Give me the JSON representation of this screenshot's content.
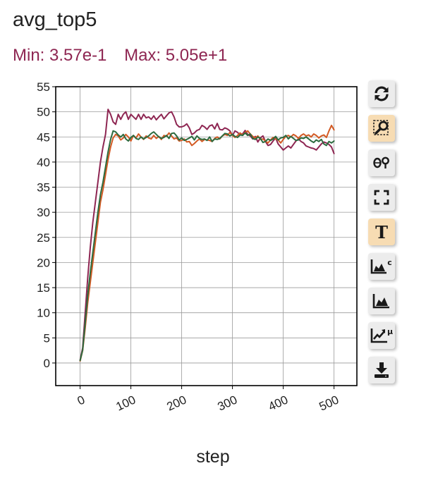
{
  "title": "avg_top5",
  "stats": {
    "min_label": "Min: 3.57e-1",
    "max_label": "Max: 5.05e+1"
  },
  "colors": {
    "stats": "#8e2652"
  },
  "toolbar": [
    {
      "name": "reset-button",
      "icon": "sync-icon",
      "active": false
    },
    {
      "name": "zoom-button",
      "icon": "zoom-rect-icon",
      "active": true
    },
    {
      "name": "zoom-out-button",
      "icon": "zoom-out-icon",
      "active": false
    },
    {
      "name": "fullscreen-button",
      "icon": "fullscreen-icon",
      "active": false
    },
    {
      "name": "text-button",
      "icon": "text-icon",
      "active": true
    },
    {
      "name": "chart-c-button",
      "icon": "area-chart-c-icon",
      "active": false
    },
    {
      "name": "chart-button",
      "icon": "area-chart-icon",
      "active": false
    },
    {
      "name": "chart-mu-button",
      "icon": "trend-mu-icon",
      "active": false
    },
    {
      "name": "download-button",
      "icon": "download-icon",
      "active": false
    }
  ],
  "chart_data": {
    "type": "line",
    "xlabel": "step",
    "ylabel": "",
    "xlim": [
      -48,
      545
    ],
    "ylim": [
      -4.5,
      55
    ],
    "xticks": [
      0,
      100,
      200,
      300,
      400,
      500
    ],
    "yticks": [
      0,
      5,
      10,
      15,
      20,
      25,
      30,
      35,
      40,
      45,
      50,
      55
    ],
    "grid": true,
    "series": [
      {
        "color": "#8e2652",
        "x": [
          0,
          5,
          10,
          15,
          20,
          25,
          30,
          35,
          40,
          45,
          50,
          55,
          60,
          65,
          70,
          75,
          80,
          85,
          90,
          95,
          100,
          105,
          110,
          115,
          120,
          125,
          130,
          135,
          140,
          145,
          150,
          155,
          160,
          165,
          170,
          175,
          180,
          185,
          190,
          195,
          200,
          205,
          210,
          215,
          220,
          225,
          230,
          235,
          240,
          245,
          250,
          255,
          260,
          265,
          270,
          275,
          280,
          285,
          290,
          295,
          300,
          305,
          310,
          315,
          320,
          325,
          330,
          335,
          340,
          345,
          350,
          355,
          360,
          365,
          370,
          375,
          380,
          385,
          390,
          395,
          400,
          405,
          410,
          415,
          420,
          425,
          430,
          435,
          440,
          445,
          450,
          455,
          460,
          465,
          470,
          475,
          480,
          485,
          490,
          495,
          500
        ],
        "y": [
          0.6,
          3,
          10,
          17,
          23,
          28,
          32,
          36,
          40,
          43,
          45.5,
          50.5,
          49.5,
          48,
          47.5,
          49.5,
          48.5,
          49.5,
          50,
          48.5,
          49.5,
          49,
          48.5,
          49.5,
          48.5,
          49.5,
          48.8,
          49,
          48.5,
          49.2,
          48.4,
          49,
          49.5,
          48.6,
          49.2,
          49.8,
          50,
          49,
          47.5,
          47,
          47,
          47.2,
          47.6,
          46.8,
          45.5,
          45.8,
          46.3,
          46.5,
          47.3,
          47,
          46.5,
          47.2,
          47.4,
          46.6,
          47.7,
          46.5,
          46.4,
          46.8,
          46.6,
          46.2,
          45.3,
          46.2,
          45.9,
          45.4,
          45.6,
          46.3,
          45.5,
          45.2,
          44.6,
          45.1,
          44,
          44.8,
          45.2,
          44.1,
          43.3,
          43.5,
          44.2,
          44.8,
          43.6,
          43,
          42.4,
          42.8,
          43.2,
          42.8,
          43.5,
          44.2,
          44.6,
          44.1,
          43.8,
          43.2,
          43,
          42.8,
          42.7,
          42.4,
          43,
          43.6,
          44,
          43.8,
          43.5,
          43,
          41.7
        ]
      },
      {
        "color": "#d35a24",
        "x": [
          0,
          5,
          10,
          15,
          20,
          25,
          30,
          35,
          40,
          45,
          50,
          55,
          60,
          65,
          70,
          75,
          80,
          85,
          90,
          95,
          100,
          105,
          110,
          115,
          120,
          125,
          130,
          135,
          140,
          145,
          150,
          155,
          160,
          165,
          170,
          175,
          180,
          185,
          190,
          195,
          200,
          205,
          210,
          215,
          220,
          225,
          230,
          235,
          240,
          245,
          250,
          255,
          260,
          265,
          270,
          275,
          280,
          285,
          290,
          295,
          300,
          305,
          310,
          315,
          320,
          325,
          330,
          335,
          340,
          345,
          350,
          355,
          360,
          365,
          370,
          375,
          380,
          385,
          390,
          395,
          400,
          405,
          410,
          415,
          420,
          425,
          430,
          435,
          440,
          445,
          450,
          455,
          460,
          465,
          470,
          475,
          480,
          485,
          490,
          495,
          500
        ],
        "y": [
          0.4,
          2.5,
          7,
          12,
          16,
          20,
          24,
          28,
          32,
          34.5,
          37.5,
          40.5,
          43,
          44.8,
          45.5,
          45.2,
          44.4,
          44.8,
          45.5,
          45,
          44.2,
          45.3,
          44.8,
          45.6,
          45,
          44.5,
          45.2,
          44.8,
          44.6,
          45.3,
          44.7,
          45.1,
          44.5,
          45.3,
          45.1,
          45.8,
          45.2,
          44.6,
          44.8,
          44.2,
          44.3,
          44.6,
          44,
          44.1,
          43.3,
          43.7,
          44.2,
          44.6,
          44.1,
          44.5,
          44.4,
          44.3,
          44.1,
          44.7,
          45,
          44.6,
          45.2,
          45.5,
          45.3,
          45.9,
          45.3,
          44.9,
          45.3,
          45.8,
          45.4,
          45.9,
          46.2,
          45.6,
          45.1,
          44.8,
          45.2,
          44.5,
          44.6,
          44.2,
          43.8,
          44.4,
          44.9,
          44.6,
          44.4,
          43.8,
          44.5,
          45.1,
          45.3,
          45,
          45.5,
          45.2,
          44.7,
          45.3,
          45.6,
          45.2,
          45.4,
          45,
          45.6,
          45.3,
          44.8,
          45.2,
          45.4,
          44.9,
          46.2,
          47.3,
          46.4
        ]
      },
      {
        "color": "#2c6b3f",
        "x": [
          0,
          5,
          10,
          15,
          20,
          25,
          30,
          35,
          40,
          45,
          50,
          55,
          60,
          65,
          70,
          75,
          80,
          85,
          90,
          95,
          100,
          105,
          110,
          115,
          120,
          125,
          130,
          135,
          140,
          145,
          150,
          155,
          160,
          165,
          170,
          175,
          180,
          185,
          190,
          195,
          200,
          205,
          210,
          215,
          220,
          225,
          230,
          235,
          240,
          245,
          250,
          255,
          260,
          265,
          270,
          275,
          280,
          285,
          290,
          295,
          300,
          305,
          310,
          315,
          320,
          325,
          330,
          335,
          340,
          345,
          350,
          355,
          360,
          365,
          370,
          375,
          380,
          385,
          390,
          395,
          400,
          405,
          410,
          415,
          420,
          425,
          430,
          435,
          440,
          445,
          450,
          455,
          460,
          465,
          470,
          475,
          480,
          485,
          490,
          495,
          500
        ],
        "y": [
          0.5,
          2.6,
          8,
          13.5,
          18,
          22,
          26,
          30,
          33.5,
          36,
          39,
          42,
          44.5,
          46.2,
          46,
          45.4,
          45,
          45.5,
          44.6,
          44.2,
          44.9,
          45.3,
          44.7,
          44.5,
          45,
          44.6,
          44.9,
          45.2,
          45.7,
          46,
          45.5,
          45,
          44.7,
          44.9,
          45.3,
          44.7,
          45.7,
          45.8,
          45.2,
          44.4,
          44.8,
          44.3,
          44.5,
          44.8,
          45.1,
          44.4,
          45.2,
          44.7,
          44.5,
          44.6,
          44.3,
          45,
          44.1,
          44.6,
          44.5,
          44.7,
          45.2,
          45.7,
          45.6,
          45.2,
          45.5,
          45.1,
          44.9,
          45.4,
          45.3,
          45.8,
          45.3,
          45.6,
          44.7,
          44.5,
          45,
          44.7,
          43.9,
          44.1,
          44.6,
          44.3,
          44.6,
          45.1,
          44.4,
          44.8,
          44.9,
          45.3,
          44.6,
          45.1,
          44.7,
          44.3,
          44.4,
          44.8,
          44.7,
          45,
          44.6,
          44.2,
          43.9,
          44.4,
          44.1,
          44.5,
          43.6,
          43.3,
          44.1,
          43.8,
          44.2
        ]
      }
    ]
  }
}
